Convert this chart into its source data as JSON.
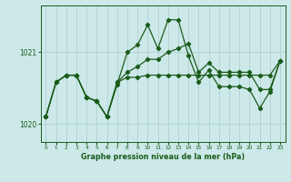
{
  "hours": [
    0,
    1,
    2,
    3,
    4,
    5,
    6,
    7,
    8,
    9,
    10,
    11,
    12,
    13,
    14,
    15,
    16,
    17,
    18,
    19,
    20,
    21,
    22,
    23
  ],
  "s1": [
    1020.1,
    1020.55,
    1020.65,
    1020.65,
    1020.4,
    1020.35,
    1020.1,
    1020.5,
    1020.95,
    1021.05,
    1021.35,
    1021.05,
    1021.45,
    1021.45,
    1021.0,
    1020.6,
    1020.75,
    1020.55,
    1020.55,
    1020.55,
    1020.5,
    1020.25,
    1020.45,
    1020.9
  ],
  "s2": [
    1020.1,
    1020.55,
    1020.65,
    1020.65,
    1020.4,
    1020.35,
    1020.1,
    1020.55,
    1020.7,
    1020.75,
    1020.85,
    1020.85,
    1020.95,
    1021.0,
    1021.1,
    1020.75,
    1020.9,
    1020.75,
    1020.75,
    1020.75,
    1020.75,
    1020.5,
    1020.5,
    1020.9
  ],
  "s3": [
    1020.1,
    1020.55,
    1020.65,
    1020.65,
    1020.4,
    1020.35,
    1020.1,
    1020.55,
    1020.65,
    1020.65,
    1020.65,
    1020.65,
    1020.65,
    1020.65,
    1020.65,
    1020.65,
    1020.65,
    1020.65,
    1020.65,
    1020.65,
    1020.65,
    1020.65,
    1020.65,
    1020.9
  ],
  "bg_color": "#cce8e8",
  "grid_color": "#aacccc",
  "line_color": "#1a5c1a",
  "xlabel": "Graphe pression niveau de la mer (hPa)",
  "ylim_min": 1019.75,
  "ylim_max": 1021.65,
  "yticks": [
    1020,
    1021
  ]
}
